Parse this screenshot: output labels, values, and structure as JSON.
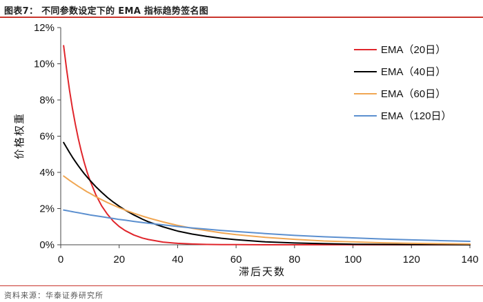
{
  "header": {
    "title": "图表7：  不同参数设定下的 EMA 指标趋势签名图"
  },
  "footer": {
    "source": "资料来源：华泰证券研究所"
  },
  "chart_data": {
    "type": "line",
    "xlabel": "滞后天数",
    "ylabel": "价格权重",
    "xlim": [
      0,
      140
    ],
    "ylim": [
      0,
      0.12
    ],
    "x_ticks": [
      0,
      20,
      40,
      60,
      80,
      100,
      120,
      140
    ],
    "x_tick_labels": [
      "0",
      "20",
      "40",
      "60",
      "80",
      "100",
      "120",
      "140"
    ],
    "y_ticks": [
      0,
      0.02,
      0.04,
      0.06,
      0.08,
      0.1,
      0.12
    ],
    "y_tick_labels": [
      "0%",
      "2%",
      "4%",
      "6%",
      "8%",
      "10%",
      "12%"
    ],
    "grid": false,
    "legend_position": "top-right",
    "x": [
      1,
      2,
      3,
      4,
      5,
      6,
      7,
      8,
      9,
      10,
      12,
      14,
      16,
      18,
      20,
      22,
      25,
      28,
      30,
      35,
      40,
      45,
      50,
      55,
      60,
      70,
      80,
      90,
      100,
      110,
      120,
      130,
      140
    ],
    "series": [
      {
        "name": "EMA（20日）",
        "color": "#e0252b",
        "values": [
          0.11,
          0.097,
          0.0855,
          0.0755,
          0.0666,
          0.0588,
          0.0518,
          0.0457,
          0.0403,
          0.0356,
          0.0277,
          0.0215,
          0.0168,
          0.013,
          0.0101,
          0.0079,
          0.0054,
          0.0037,
          0.0029,
          0.0015,
          0.0008,
          0.0004,
          0.0002,
          0.0001,
          0.0001,
          0.0,
          0.0,
          0.0,
          0.0,
          0.0,
          0.0,
          0.0,
          0.0
        ]
      },
      {
        "name": "EMA（40日）",
        "color": "#000000",
        "values": [
          0.0565,
          0.0537,
          0.051,
          0.0484,
          0.046,
          0.0437,
          0.0415,
          0.0394,
          0.0375,
          0.0356,
          0.0321,
          0.029,
          0.0261,
          0.0236,
          0.0213,
          0.0192,
          0.0165,
          0.0141,
          0.0127,
          0.0099,
          0.0076,
          0.0059,
          0.0046,
          0.0036,
          0.0028,
          0.0016,
          0.001,
          0.0006,
          0.0003,
          0.0002,
          0.0001,
          0.0001,
          0.0
        ]
      },
      {
        "name": "EMA（60日）",
        "color": "#f0a652",
        "values": [
          0.038,
          0.0368,
          0.0356,
          0.0345,
          0.0334,
          0.0323,
          0.0313,
          0.0303,
          0.0293,
          0.0284,
          0.0266,
          0.0249,
          0.0233,
          0.0219,
          0.0205,
          0.0192,
          0.0174,
          0.0158,
          0.0148,
          0.0126,
          0.0107,
          0.0091,
          0.0078,
          0.0066,
          0.0056,
          0.0041,
          0.003,
          0.0021,
          0.0016,
          0.0011,
          0.0008,
          0.0006,
          0.0004
        ]
      },
      {
        "name": "EMA（120日）",
        "color": "#5b8fcf",
        "values": [
          0.0192,
          0.0189,
          0.0186,
          0.0183,
          0.018,
          0.0177,
          0.0174,
          0.0171,
          0.0168,
          0.0165,
          0.016,
          0.0155,
          0.015,
          0.0145,
          0.014,
          0.0136,
          0.0129,
          0.0123,
          0.0119,
          0.011,
          0.0101,
          0.0093,
          0.0086,
          0.0079,
          0.0073,
          0.0062,
          0.0052,
          0.0044,
          0.0038,
          0.0032,
          0.0027,
          0.0023,
          0.0019
        ]
      }
    ]
  }
}
